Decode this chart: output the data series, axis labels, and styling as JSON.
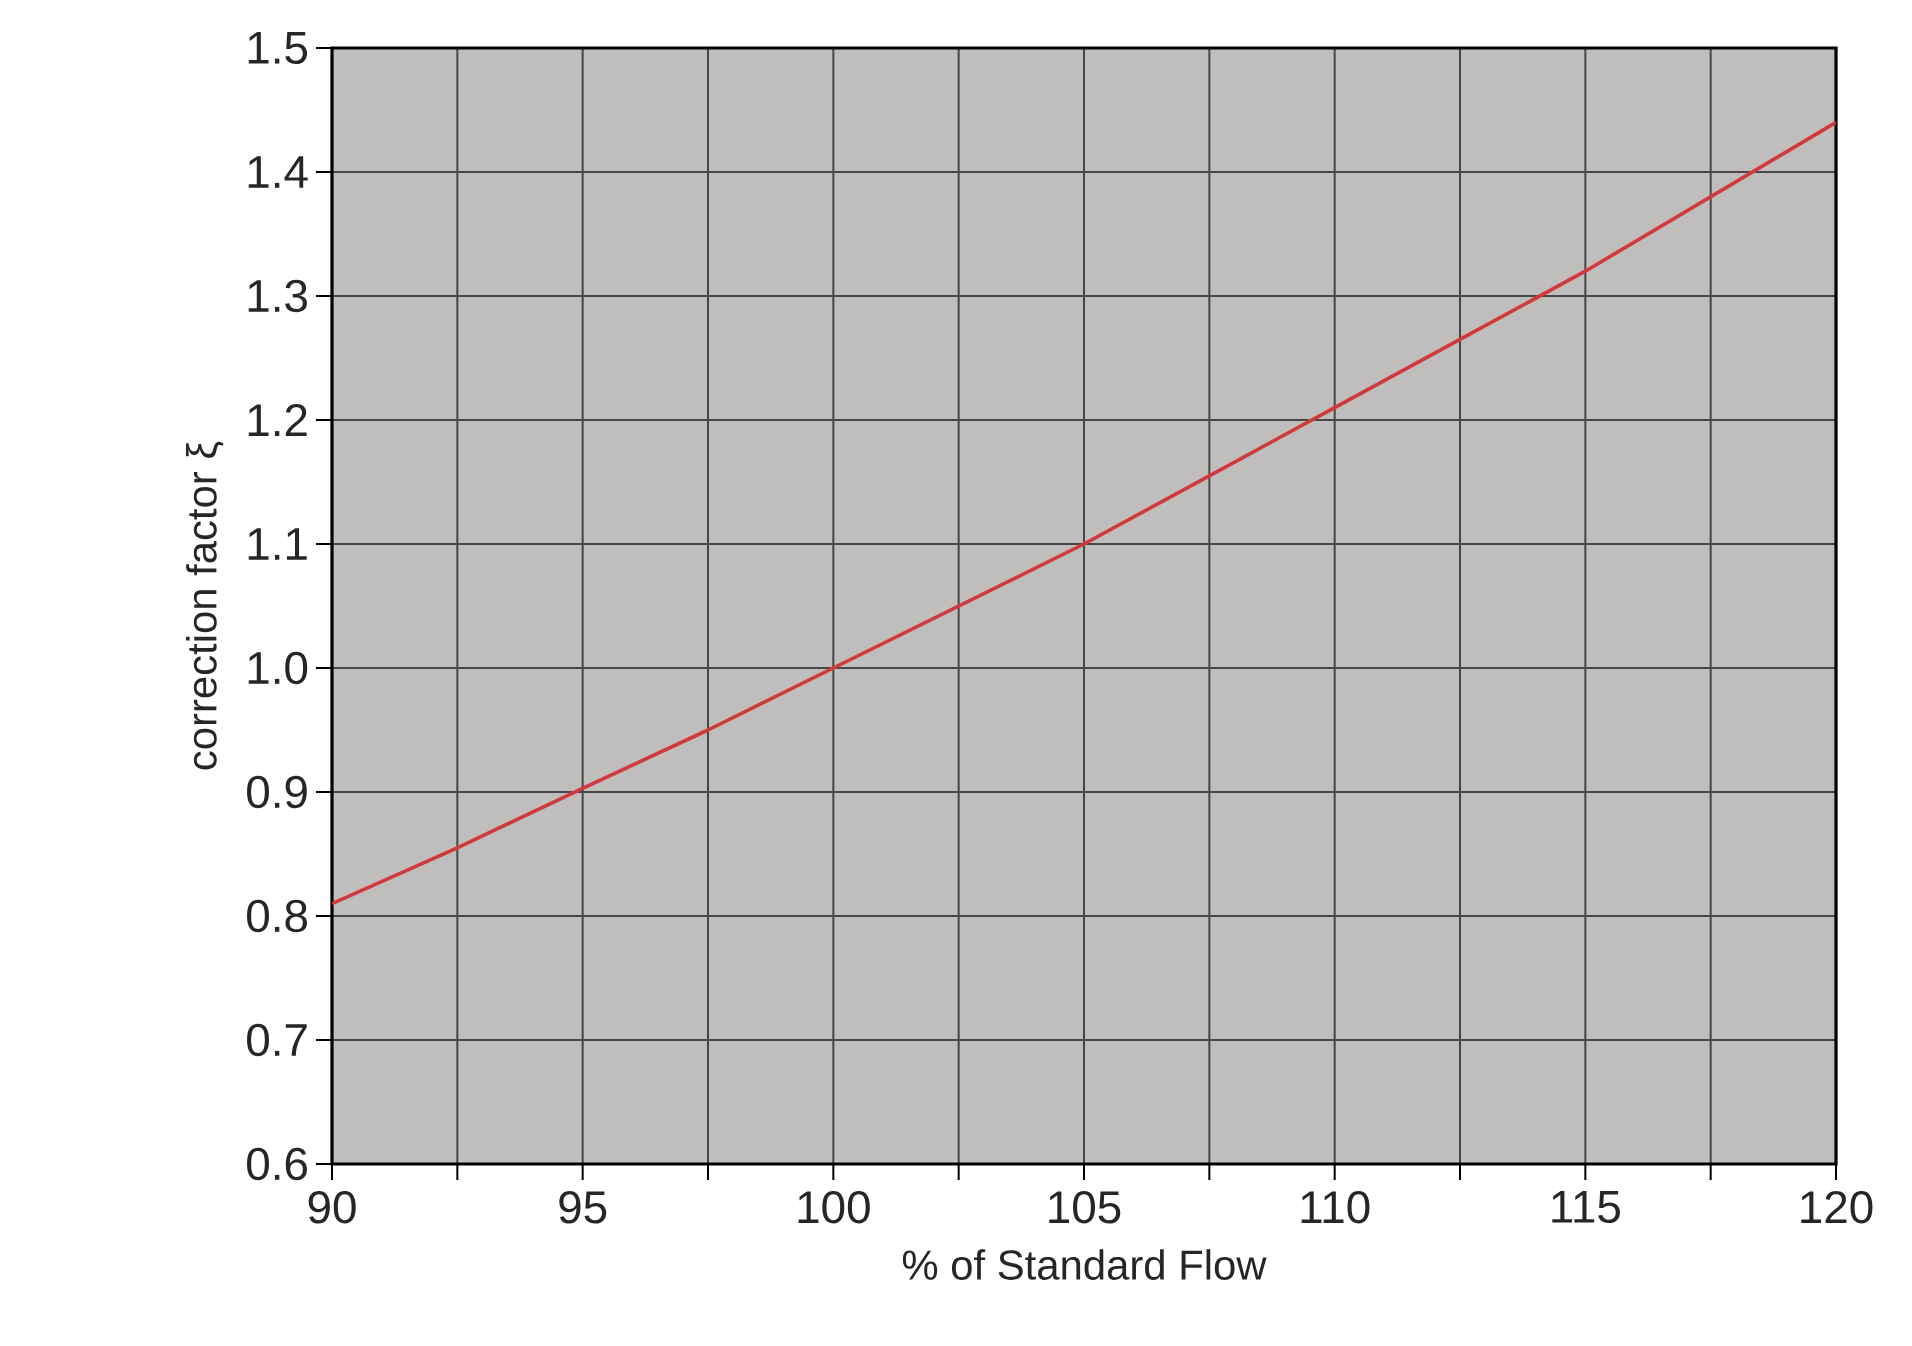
{
  "chart_data": {
    "type": "line",
    "xlabel": "% of Standard  Flow",
    "ylabel": "correction factor ξ",
    "x": [
      90,
      92.5,
      95,
      97.5,
      100,
      102.5,
      105,
      107.5,
      110,
      112.5,
      115,
      117.5,
      120
    ],
    "series": [
      {
        "color": "#d03a3a",
        "values": [
          0.81,
          0.855,
          0.903,
          0.95,
          1.0,
          1.05,
          1.1,
          1.155,
          1.21,
          1.265,
          1.32,
          1.38,
          1.44
        ]
      }
    ],
    "xlim": [
      90,
      120
    ],
    "xticks": [
      90,
      {
        "value": 92.5,
        "label": null
      },
      95,
      {
        "value": 97.5,
        "label": null
      },
      100,
      {
        "value": 102.5,
        "label": null
      },
      105,
      {
        "value": 107.5,
        "label": null
      },
      110,
      {
        "value": 112.5,
        "label": null
      },
      115,
      {
        "value": 117.5,
        "label": null
      },
      120
    ],
    "ylim": [
      0.6,
      1.5
    ],
    "yticks": [
      0.6,
      0.7,
      0.8,
      0.9,
      {
        "value": 1.0,
        "label": "1.0"
      },
      1.1,
      1.2,
      1.3,
      1.4,
      1.5
    ],
    "grid": true,
    "marker": "none",
    "line_style": "solid"
  }
}
